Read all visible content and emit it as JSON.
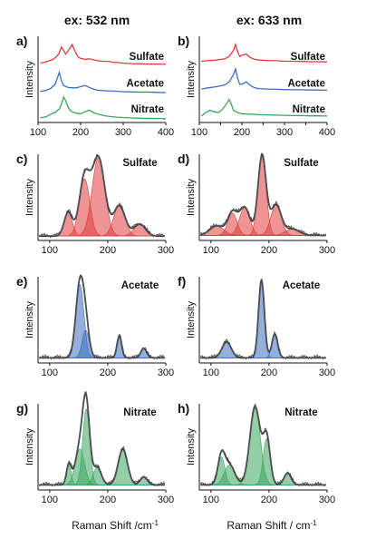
{
  "column_headers": [
    "ex: 532 nm",
    "ex: 633 nm"
  ],
  "y_label": "Intensity",
  "x_label_main": "Raman Shift /cm",
  "x_label_sup": "-1",
  "x_label_main_right": "Raman Shift / cm",
  "x_label_sup_right": "-1",
  "colors": {
    "Sulfate": "#e03c3c",
    "Acetate": "#3d6ebd",
    "Nitrate": "#3aa55e",
    "Measured": "#555555",
    "Fit": "#3a3f48"
  },
  "chart_data": [
    {
      "label": "a)",
      "type": "line",
      "xlim": [
        100,
        400
      ],
      "xticks": [
        100,
        200,
        300,
        400
      ],
      "series": [
        {
          "name": "Sulfate",
          "x": [
            105,
            120,
            135,
            145,
            150,
            155,
            160,
            165,
            170,
            175,
            180,
            185,
            190,
            195,
            200,
            210,
            220,
            230,
            240,
            250,
            260,
            270,
            280,
            290,
            300,
            320,
            340,
            360,
            380,
            400
          ],
          "y": [
            0.22,
            0.28,
            0.38,
            0.52,
            0.65,
            0.9,
            0.75,
            0.6,
            0.72,
            0.85,
            1.0,
            0.8,
            0.6,
            0.45,
            0.42,
            0.38,
            0.4,
            0.36,
            0.32,
            0.3,
            0.3,
            0.28,
            0.25,
            0.24,
            0.22,
            0.2,
            0.19,
            0.18,
            0.18,
            0.17
          ]
        },
        {
          "name": "Acetate",
          "x": [
            105,
            120,
            130,
            140,
            145,
            150,
            155,
            160,
            170,
            180,
            190,
            200,
            210,
            220,
            230,
            240,
            260,
            280,
            300,
            320,
            340,
            360,
            380,
            400
          ],
          "y": [
            0.15,
            0.2,
            0.28,
            0.45,
            0.7,
            0.95,
            0.6,
            0.4,
            0.32,
            0.3,
            0.3,
            0.35,
            0.4,
            0.32,
            0.25,
            0.2,
            0.18,
            0.16,
            0.14,
            0.13,
            0.12,
            0.12,
            0.11,
            0.1
          ]
        },
        {
          "name": "Nitrate",
          "x": [
            105,
            120,
            130,
            140,
            150,
            155,
            160,
            165,
            170,
            175,
            180,
            190,
            200,
            210,
            220,
            230,
            240,
            260,
            280,
            300,
            320,
            340,
            360,
            380,
            400
          ],
          "y": [
            0.12,
            0.18,
            0.28,
            0.35,
            0.5,
            0.7,
            1.0,
            0.85,
            0.6,
            0.45,
            0.38,
            0.32,
            0.3,
            0.38,
            0.45,
            0.35,
            0.28,
            0.2,
            0.16,
            0.14,
            0.12,
            0.11,
            0.1,
            0.1,
            0.09
          ]
        }
      ]
    },
    {
      "label": "b)",
      "type": "line",
      "xlim": [
        100,
        400
      ],
      "xticks": [
        100,
        150,
        200,
        250,
        300,
        350,
        400
      ],
      "series": [
        {
          "name": "Sulfate",
          "x": [
            105,
            120,
            140,
            160,
            170,
            180,
            185,
            190,
            195,
            200,
            210,
            220,
            230,
            240,
            260,
            280,
            300,
            320,
            340,
            360,
            380,
            400
          ],
          "y": [
            0.3,
            0.32,
            0.35,
            0.4,
            0.5,
            0.75,
            1.0,
            0.7,
            0.5,
            0.55,
            0.6,
            0.45,
            0.38,
            0.35,
            0.33,
            0.32,
            0.3,
            0.3,
            0.29,
            0.28,
            0.28,
            0.27
          ]
        },
        {
          "name": "Acetate",
          "x": [
            105,
            120,
            140,
            160,
            170,
            180,
            185,
            190,
            195,
            200,
            210,
            220,
            230,
            240,
            260,
            280,
            300,
            320,
            340,
            360,
            380,
            400
          ],
          "y": [
            0.25,
            0.3,
            0.35,
            0.42,
            0.55,
            0.85,
            1.1,
            0.7,
            0.45,
            0.45,
            0.55,
            0.4,
            0.3,
            0.27,
            0.25,
            0.24,
            0.23,
            0.22,
            0.22,
            0.21,
            0.21,
            0.2
          ]
        },
        {
          "name": "Nitrate",
          "x": [
            105,
            115,
            125,
            135,
            145,
            155,
            165,
            170,
            175,
            180,
            190,
            200,
            220,
            240,
            260,
            280,
            300,
            320,
            340,
            360,
            380,
            400
          ],
          "y": [
            0.2,
            0.35,
            0.45,
            0.38,
            0.35,
            0.5,
            0.75,
            0.9,
            0.7,
            0.45,
            0.35,
            0.3,
            0.28,
            0.26,
            0.25,
            0.24,
            0.23,
            0.22,
            0.22,
            0.21,
            0.21,
            0.2
          ]
        }
      ]
    },
    {
      "label": "c)",
      "title": "Sulfate",
      "type": "area",
      "color": "Sulfate",
      "xlim": [
        80,
        300
      ],
      "xticks": [
        100,
        200,
        300
      ],
      "peaks": [
        {
          "x": 132,
          "h": 0.3,
          "w": 7
        },
        {
          "x": 160,
          "h": 0.72,
          "w": 9
        },
        {
          "x": 184,
          "h": 0.98,
          "w": 11
        },
        {
          "x": 220,
          "h": 0.38,
          "w": 10
        },
        {
          "x": 255,
          "h": 0.15,
          "w": 10
        }
      ],
      "baseline": 0.02
    },
    {
      "label": "d)",
      "title": "Sulfate",
      "type": "area",
      "color": "Sulfate",
      "xlim": [
        80,
        300
      ],
      "xticks": [
        100,
        200,
        300
      ],
      "peaks": [
        {
          "x": 110,
          "h": 0.12,
          "w": 12
        },
        {
          "x": 137,
          "h": 0.28,
          "w": 8
        },
        {
          "x": 158,
          "h": 0.35,
          "w": 9
        },
        {
          "x": 188,
          "h": 1.0,
          "w": 7
        },
        {
          "x": 212,
          "h": 0.38,
          "w": 9
        },
        {
          "x": 240,
          "h": 0.08,
          "w": 12
        }
      ],
      "baseline": 0.03
    },
    {
      "label": "e)",
      "title": "Acetate",
      "type": "area",
      "color": "Acetate",
      "xlim": [
        80,
        300
      ],
      "xticks": [
        100,
        200,
        300
      ],
      "peaks": [
        {
          "x": 152,
          "h": 0.92,
          "w": 7
        },
        {
          "x": 162,
          "h": 0.35,
          "w": 6
        },
        {
          "x": 220,
          "h": 0.28,
          "w": 4
        },
        {
          "x": 262,
          "h": 0.12,
          "w": 5
        }
      ],
      "baseline": 0.03
    },
    {
      "label": "f)",
      "title": "Acetate",
      "type": "area",
      "color": "Acetate",
      "xlim": [
        80,
        300
      ],
      "xticks": [
        100,
        200,
        300
      ],
      "peaks": [
        {
          "x": 127,
          "h": 0.2,
          "w": 8
        },
        {
          "x": 187,
          "h": 0.98,
          "w": 5
        },
        {
          "x": 210,
          "h": 0.3,
          "w": 5
        }
      ],
      "baseline": 0.03
    },
    {
      "label": "g)",
      "title": "Nitrate",
      "type": "area",
      "color": "Nitrate",
      "xlim": [
        80,
        300
      ],
      "xticks": [
        100,
        200,
        300
      ],
      "peaks": [
        {
          "x": 133,
          "h": 0.25,
          "w": 4
        },
        {
          "x": 152,
          "h": 0.45,
          "w": 8
        },
        {
          "x": 163,
          "h": 0.95,
          "w": 6
        },
        {
          "x": 182,
          "h": 0.22,
          "w": 7
        },
        {
          "x": 226,
          "h": 0.45,
          "w": 8
        },
        {
          "x": 262,
          "h": 0.1,
          "w": 6
        }
      ],
      "baseline": 0.03
    },
    {
      "label": "h)",
      "title": "Nitrate",
      "type": "area",
      "color": "Nitrate",
      "xlim": [
        80,
        300
      ],
      "xticks": [
        100,
        200,
        300
      ],
      "peaks": [
        {
          "x": 118,
          "h": 0.35,
          "w": 6
        },
        {
          "x": 132,
          "h": 0.25,
          "w": 9
        },
        {
          "x": 176,
          "h": 0.98,
          "w": 9
        },
        {
          "x": 196,
          "h": 0.58,
          "w": 6
        },
        {
          "x": 232,
          "h": 0.15,
          "w": 6
        }
      ],
      "baseline": 0.03
    }
  ]
}
